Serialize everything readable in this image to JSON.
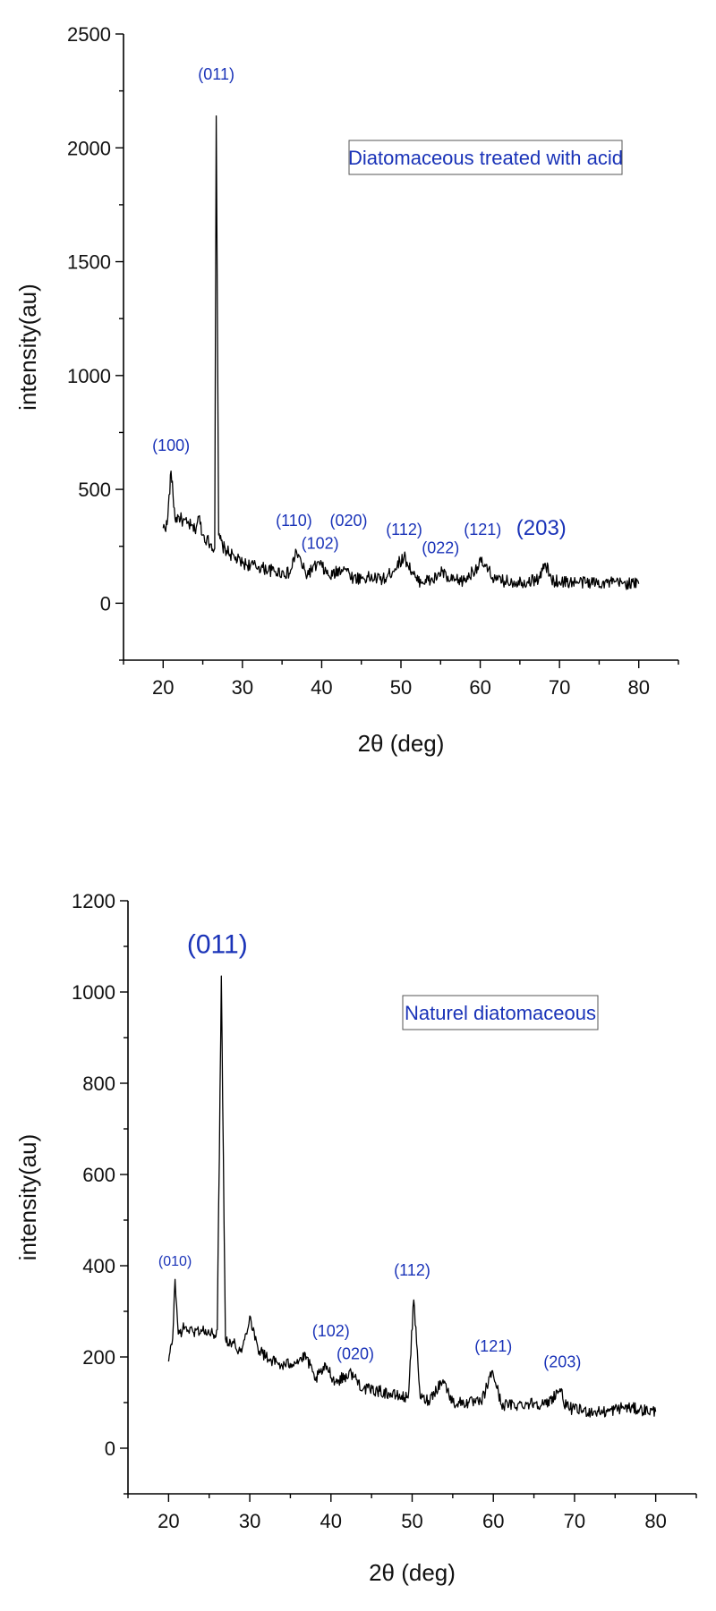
{
  "chart_data": [
    {
      "type": "line",
      "xlabel": "2θ (deg)",
      "ylabel": "intensity(au)",
      "xlim": [
        15,
        85
      ],
      "ylim": [
        -250,
        2500
      ],
      "xticks": [
        20,
        30,
        40,
        50,
        60,
        70,
        80
      ],
      "yticks": [
        0,
        500,
        1000,
        1500,
        2000,
        2500
      ],
      "grid": false,
      "legend": {
        "label": "Diatomaceous treated with acid",
        "placement": "top-right"
      },
      "series": [
        {
          "color": "#000000",
          "x": [
            20,
            20.5,
            21,
            21.5,
            22,
            22.5,
            23,
            23.5,
            24,
            24.5,
            25,
            25.5,
            26,
            26.5,
            26.7,
            27,
            27.5,
            28,
            29,
            30,
            32,
            34,
            36,
            36.8,
            38,
            39.7,
            41,
            42.8,
            44,
            46,
            48,
            50.4,
            52,
            54,
            55.2,
            56,
            58,
            60.1,
            62,
            64,
            66,
            67.5,
            68.2,
            69,
            70,
            72,
            74,
            76,
            78,
            80
          ],
          "y": [
            330,
            345,
            580,
            370,
            380,
            360,
            350,
            340,
            320,
            380,
            300,
            280,
            260,
            240,
            2140,
            300,
            250,
            230,
            200,
            175,
            160,
            140,
            130,
            230,
            125,
            175,
            115,
            160,
            110,
            112,
            105,
            205,
            98,
            100,
            140,
            100,
            98,
            180,
            100,
            95,
            95,
            110,
            175,
            100,
            95,
            92,
            92,
            90,
            88,
            85
          ]
        }
      ],
      "annotations": [
        {
          "text": "(011)",
          "x": 26.7,
          "y": 2300
        },
        {
          "text": "(100)",
          "x": 21.0,
          "y": 670
        },
        {
          "text": "(110)",
          "x": 36.5,
          "y": 340
        },
        {
          "text": "(102)",
          "x": 39.8,
          "y": 240
        },
        {
          "text": "(020)",
          "x": 43.4,
          "y": 340
        },
        {
          "text": "(112)",
          "x": 50.4,
          "y": 300
        },
        {
          "text": "(022)",
          "x": 55.0,
          "y": 220
        },
        {
          "text": "(121)",
          "x": 60.3,
          "y": 300
        },
        {
          "text": "(203)",
          "x": 67.7,
          "y": 300
        }
      ]
    },
    {
      "type": "line",
      "xlabel": "2θ (deg)",
      "ylabel": "intensity(au)",
      "xlim": [
        15,
        85
      ],
      "ylim": [
        -100,
        1200
      ],
      "xticks": [
        20,
        30,
        40,
        50,
        60,
        70,
        80
      ],
      "yticks": [
        0,
        200,
        400,
        600,
        800,
        1000,
        1200
      ],
      "grid": false,
      "legend": {
        "label": "Naturel diatomaceous",
        "placement": "top-right"
      },
      "series": [
        {
          "color": "#000000",
          "x": [
            20,
            20.5,
            20.8,
            21.2,
            22,
            23,
            24,
            25,
            25.5,
            26,
            26.5,
            27,
            28,
            29,
            30,
            31,
            32,
            34,
            35.5,
            37,
            38,
            39.5,
            40.5,
            42.5,
            44,
            46,
            48,
            49.5,
            50.2,
            51,
            52,
            53.8,
            55,
            57,
            58.5,
            59.9,
            61,
            63,
            65,
            66.5,
            68.2,
            69,
            70,
            72,
            74,
            76,
            78,
            80
          ],
          "y": [
            190,
            240,
            370,
            250,
            265,
            255,
            260,
            250,
            250,
            260,
            1035,
            240,
            230,
            210,
            290,
            220,
            200,
            180,
            190,
            200,
            150,
            180,
            145,
            165,
            130,
            125,
            115,
            110,
            325,
            110,
            105,
            150,
            100,
            100,
            100,
            170,
            95,
            95,
            100,
            95,
            130,
            90,
            85,
            80,
            80,
            90,
            85,
            80
          ]
        }
      ],
      "annotations": [
        {
          "text": "(011)",
          "x": 26.0,
          "y": 1085
        },
        {
          "text": "(010)",
          "x": 20.8,
          "y": 400
        },
        {
          "text": "(102)",
          "x": 40.0,
          "y": 245
        },
        {
          "text": "(020)",
          "x": 43.0,
          "y": 195
        },
        {
          "text": "(112)",
          "x": 50.0,
          "y": 378
        },
        {
          "text": "(121)",
          "x": 60.0,
          "y": 212
        },
        {
          "text": "(203)",
          "x": 68.5,
          "y": 177
        }
      ]
    }
  ]
}
